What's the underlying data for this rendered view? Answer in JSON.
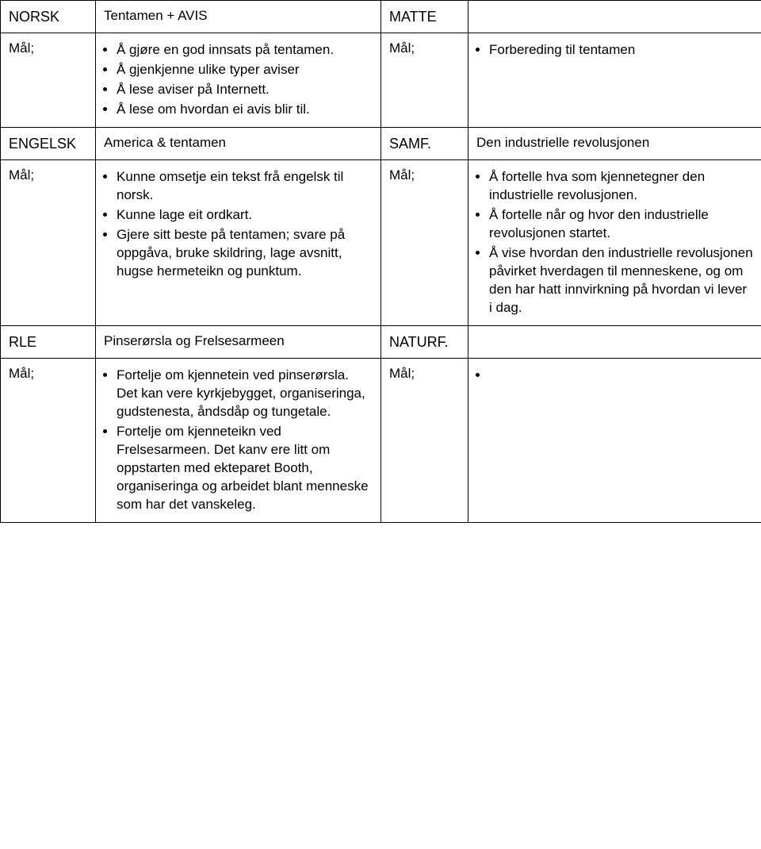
{
  "labels": {
    "mal": "Mål;"
  },
  "rows": {
    "r1": {
      "subj_left": "NORSK",
      "topic_left": "Tentamen + AVIS",
      "subj_right": "MATTE",
      "topic_right": ""
    },
    "r2": {
      "goals_left": [
        "Å gjøre en god innsats på tentamen.",
        "Å gjenkjenne ulike typer aviser",
        "Å lese aviser på Internett.",
        "Å lese om hvordan ei avis blir til."
      ],
      "goals_right": [
        "Forbereding til tentamen"
      ]
    },
    "r3": {
      "subj_left": "ENGELSK",
      "topic_left": "America & tentamen",
      "subj_right": "SAMF.",
      "topic_right": "Den industrielle revolusjonen"
    },
    "r4": {
      "goals_left": [
        "Kunne omsetje ein tekst frå engelsk til norsk.",
        "Kunne lage eit ordkart.",
        "Gjere sitt beste på tentamen; svare på oppgåva, bruke skildring, lage avsnitt, hugse hermeteikn og punktum."
      ],
      "goals_right": [
        "Å fortelle hva som kjennetegner den industrielle revolusjonen.",
        "Å fortelle når og hvor den industrielle revolusjonen startet.",
        "Å vise hvordan den industrielle revolusjonen påvirket hverdagen til menneskene, og om den har hatt innvirkning på hvordan vi lever i dag."
      ]
    },
    "r5": {
      "subj_left": "RLE",
      "topic_left": "Pinserørsla og Frelsesarmeen",
      "subj_right": "NATURF.",
      "topic_right": ""
    },
    "r6": {
      "goals_left": [
        "Fortelje om kjennetein ved pinserørsla. Det kan vere kyrkjebygget, organiseringa, gudstenesta, åndsdåp og tungetale.",
        "Fortelje om kjenneteikn ved Frelsesarmeen. Det kanv ere litt om oppstarten med ekteparet Booth, organiseringa og arbeidet blant menneske som har det vanskeleg."
      ],
      "goals_right": [
        ""
      ]
    }
  }
}
